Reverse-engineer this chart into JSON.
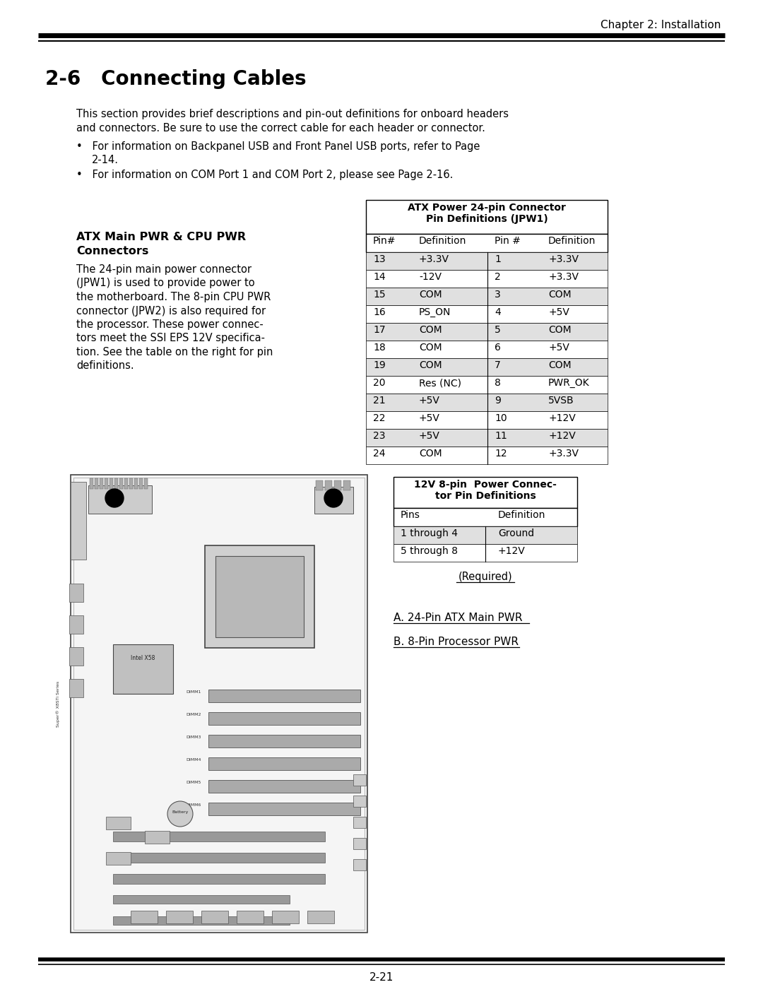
{
  "page_header": "Chapter 2: Installation",
  "section_title": "2-6   Connecting Cables",
  "intro_text_line1": "This section provides brief descriptions and pin-out definitions for onboard headers",
  "intro_text_line2": "and connectors. Be sure to use the correct cable for each header or connector.",
  "bullet1": "•   For information on Backpanel USB and Front Panel USB ports, refer to Page",
  "bullet1_cont": "2-14.",
  "bullet2": "•   For information on COM Port 1 and COM Port 2, please see Page 2-16.",
  "atx_section_title_line1": "ATX Main PWR & CPU PWR",
  "atx_section_title_line2": "Connectors",
  "body_lines": [
    "The 24-pin main power connector",
    "(JPW1) is used to provide power to",
    "the motherboard. The 8-pin CPU PWR",
    "connector (JPW2) is also required for",
    "the processor. These power connec-",
    "tors meet the SSI EPS 12V specifica-",
    "tion. See the table on the right for pin",
    "definitions."
  ],
  "table1_title_line1": "ATX Power 24-pin Connector",
  "table1_title_line2": "Pin Definitions (JPW1)",
  "table1_headers": [
    "Pin#",
    "Definition",
    "Pin #",
    "Definition"
  ],
  "table1_rows": [
    [
      "13",
      "+3.3V",
      "1",
      "+3.3V"
    ],
    [
      "14",
      "-12V",
      "2",
      "+3.3V"
    ],
    [
      "15",
      "COM",
      "3",
      "COM"
    ],
    [
      "16",
      "PS_ON",
      "4",
      "+5V"
    ],
    [
      "17",
      "COM",
      "5",
      "COM"
    ],
    [
      "18",
      "COM",
      "6",
      "+5V"
    ],
    [
      "19",
      "COM",
      "7",
      "COM"
    ],
    [
      "20",
      "Res (NC)",
      "8",
      "PWR_OK"
    ],
    [
      "21",
      "+5V",
      "9",
      "5VSB"
    ],
    [
      "22",
      "+5V",
      "10",
      "+12V"
    ],
    [
      "23",
      "+5V",
      "11",
      "+12V"
    ],
    [
      "24",
      "COM",
      "12",
      "+3.3V"
    ]
  ],
  "table2_title_line1": "12V 8-pin  Power Connec-",
  "table2_title_line2": "tor Pin Definitions",
  "table2_headers": [
    "Pins",
    "Definition"
  ],
  "table2_rows": [
    [
      "1 through 4",
      "Ground"
    ],
    [
      "5 through 8",
      "+12V"
    ]
  ],
  "required_text": "(Required)",
  "label_a": "A. 24-Pin ATX Main PWR",
  "label_b": "B. 8-Pin Processor PWR",
  "page_number": "2-21",
  "bg_color": "#ffffff",
  "text_color": "#000000",
  "table_row_odd_bg": "#e0e0e0",
  "table_row_even_bg": "#ffffff",
  "table_border_color": "#000000"
}
